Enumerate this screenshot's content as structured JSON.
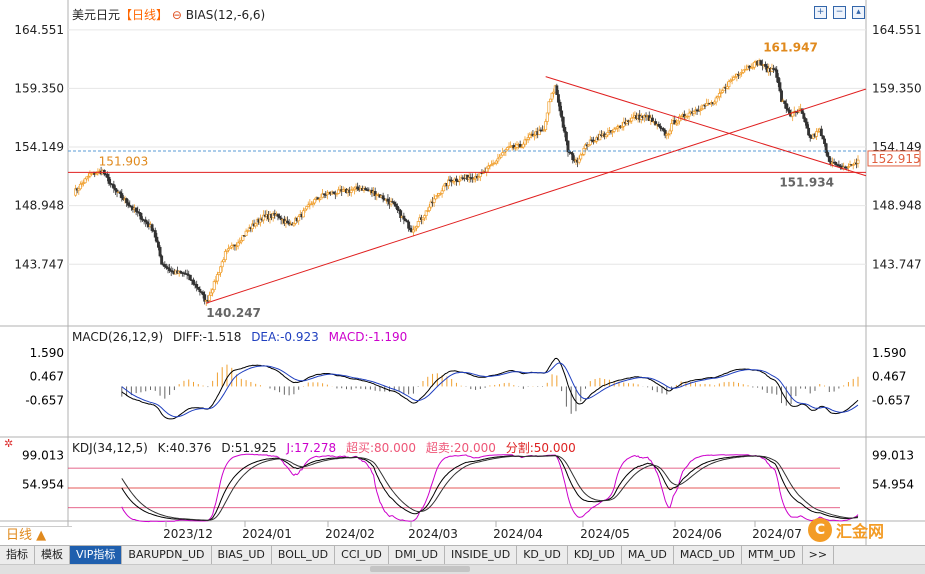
{
  "header": {
    "symbol": "美元日元",
    "period": "【日线】",
    "indicator": "BIAS(12,-6,6)"
  },
  "colors": {
    "up": "#f0a030",
    "down": "#333333",
    "trend": "#e02020",
    "dashed": "#5a9bd5",
    "axis": "#b0b0b0",
    "grid": "#e6e6e6",
    "diff": "#000000",
    "dea": "#1f3fbf",
    "macd_pos": "#f0a030",
    "macd_neg": "#666666",
    "k": "#000000",
    "d": "#333333",
    "j": "#cc00cc",
    "overbought": "#dd3366",
    "oversold": "#dd3366"
  },
  "macd_header": {
    "name": "MACD(26,12,9)",
    "diff_label": "DIFF:",
    "diff": "-1.518",
    "dea_label": "DEA:",
    "dea": "-0.923",
    "macd_label": "MACD:",
    "macd": "-1.190"
  },
  "kdj_header": {
    "name": "KDJ(34,12,5)",
    "k_label": "K:",
    "k": "40.376",
    "d_label": "D:",
    "d": "51.925",
    "j_label": "J:",
    "j": "17.278",
    "ob_label": "超买:",
    "ob": "80.000",
    "os_label": "超卖:",
    "os": "20.000",
    "split_label": "分割:",
    "split": "50.000"
  },
  "period_tab": "日线 ▲",
  "tabs": [
    "指标",
    "模板",
    "VIP指标",
    "BARUPDN_UD",
    "BIAS_UD",
    "BOLL_UD",
    "CCI_UD",
    "DMI_UD",
    "INSIDE_UD",
    "KD_UD",
    "KDJ_UD",
    "MA_UD",
    "MACD_UD",
    "MTM_UD",
    ">>"
  ],
  "active_tab": 2,
  "brand": "汇金网",
  "chart_data": {
    "type": "candlestick",
    "price_ticks": [
      164.551,
      159.35,
      154.149,
      148.948,
      143.747
    ],
    "price_range": [
      138.8,
      165.6
    ],
    "macd_ticks": [
      1.59,
      0.467,
      -0.657
    ],
    "macd_range": [
      -2.2,
      2.1
    ],
    "kdj_ticks": [
      99.013,
      54.954
    ],
    "kdj_range": [
      0,
      112
    ],
    "x_labels": [
      "2023/12",
      "2024/01",
      "2024/02",
      "2024/03",
      "2024/04",
      "2024/05",
      "2024/06",
      "2024/07"
    ],
    "annotations": {
      "high_label": "161.947",
      "low_label": "140.247",
      "level_label": "151.903",
      "recent_low_label": "151.934",
      "current_label": "152.915",
      "current_price": 152.915,
      "horizontal_level": 151.903
    }
  }
}
